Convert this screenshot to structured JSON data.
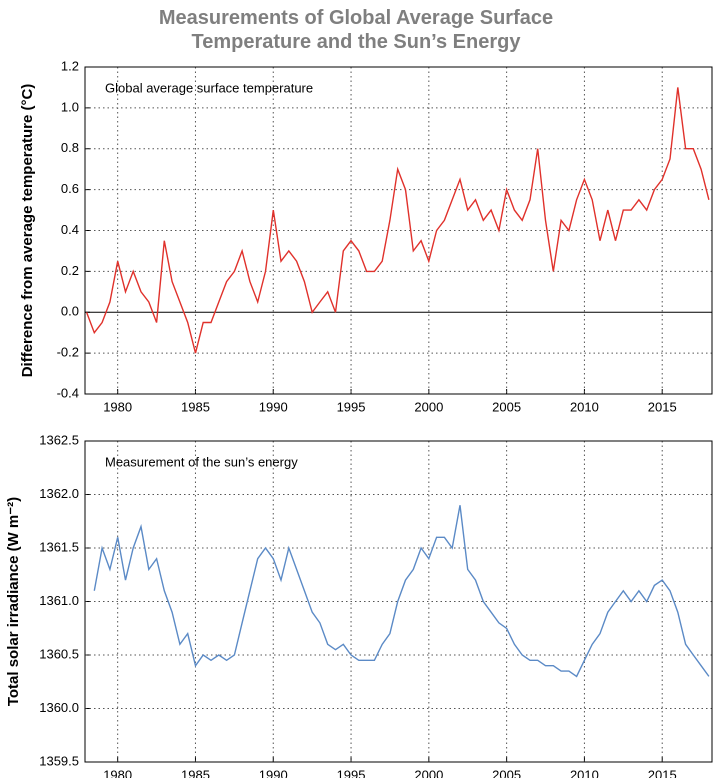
{
  "header": {
    "title": "Measurements of Global Average Surface Temperature and the Sun’s Energy"
  },
  "chart_data": [
    {
      "type": "line",
      "title": "Global average surface temperature",
      "ylabel": "Difference from average temperature (°C)",
      "x": [
        1978,
        1978.5,
        1979,
        1979.5,
        1980,
        1980.5,
        1981,
        1981.5,
        1982,
        1982.5,
        1983,
        1983.5,
        1984,
        1984.5,
        1985,
        1985.5,
        1986,
        1986.5,
        1987,
        1987.5,
        1988,
        1988.5,
        1989,
        1989.5,
        1990,
        1990.5,
        1991,
        1991.5,
        1992,
        1992.5,
        1993,
        1993.5,
        1994,
        1994.5,
        1995,
        1995.5,
        1996,
        1996.5,
        1997,
        1997.5,
        1998,
        1998.5,
        1999,
        1999.5,
        2000,
        2000.5,
        2001,
        2001.5,
        2002,
        2002.5,
        2003,
        2003.5,
        2004,
        2004.5,
        2005,
        2005.5,
        2006,
        2006.5,
        2007,
        2007.5,
        2008,
        2008.5,
        2009,
        2009.5,
        2010,
        2010.5,
        2011,
        2011.5,
        2012,
        2012.5,
        2013,
        2013.5,
        2014,
        2014.5,
        2015,
        2015.5,
        2016,
        2016.5,
        2017,
        2017.5,
        2018
      ],
      "series": [
        {
          "color": "#e0312b",
          "values": [
            0,
            -0.1,
            -0.05,
            0.05,
            0.25,
            0.1,
            0.2,
            0.1,
            0.05,
            -0.05,
            0.35,
            0.15,
            0.05,
            -0.05,
            -0.2,
            -0.05,
            -0.05,
            0.05,
            0.15,
            0.2,
            0.3,
            0.15,
            0.05,
            0.2,
            0.5,
            0.25,
            0.3,
            0.25,
            0.15,
            0,
            0.05,
            0.1,
            0,
            0.3,
            0.35,
            0.3,
            0.2,
            0.2,
            0.25,
            0.45,
            0.7,
            0.6,
            0.3,
            0.35,
            0.25,
            0.4,
            0.45,
            0.55,
            0.65,
            0.5,
            0.55,
            0.45,
            0.5,
            0.4,
            0.6,
            0.5,
            0.45,
            0.55,
            0.8,
            0.45,
            0.2,
            0.45,
            0.4,
            0.55,
            0.65,
            0.55,
            0.35,
            0.5,
            0.35,
            0.5,
            0.5,
            0.55,
            0.5,
            0.6,
            0.65,
            0.75,
            1.1,
            0.8,
            0.8,
            0.7,
            0.55
          ]
        }
      ],
      "xlim": [
        1977.9,
        2018.2
      ],
      "xticks": [
        1980,
        1985,
        1990,
        1995,
        2000,
        2005,
        2010,
        2015
      ],
      "ylim": [
        -0.4,
        1.2
      ],
      "yticks": [
        -0.4,
        -0.2,
        {
          "value": 0,
          "label": "0.0"
        },
        0.2,
        0.4,
        0.6,
        0.8,
        {
          "value": 1,
          "label": "1.0"
        },
        1.2
      ],
      "grid": true
    },
    {
      "type": "line",
      "title": "Measurement of the sun’s energy",
      "ylabel": "Total solar irradiance (W m⁻²)",
      "x": [
        1978.5,
        1979,
        1979.5,
        1980,
        1980.5,
        1981,
        1981.5,
        1982,
        1982.5,
        1983,
        1983.5,
        1984,
        1984.5,
        1985,
        1985.5,
        1986,
        1986.5,
        1987,
        1987.5,
        1988,
        1988.5,
        1989,
        1989.5,
        1990,
        1990.5,
        1991,
        1991.5,
        1992,
        1992.5,
        1993,
        1993.5,
        1994,
        1994.5,
        1995,
        1995.5,
        1996,
        1996.5,
        1997,
        1997.5,
        1998,
        1998.5,
        1999,
        1999.5,
        2000,
        2000.5,
        2001,
        2001.5,
        2002,
        2002.5,
        2003,
        2003.5,
        2004,
        2004.5,
        2005,
        2005.5,
        2006,
        2006.5,
        2007,
        2007.5,
        2008,
        2008.5,
        2009,
        2009.5,
        2010,
        2010.5,
        2011,
        2011.5,
        2012,
        2012.5,
        2013,
        2013.5,
        2014,
        2014.5,
        2015,
        2015.5,
        2016,
        2016.5,
        2017,
        2017.5,
        2018
      ],
      "series": [
        {
          "color": "#5b8ac6",
          "values": [
            1361.1,
            1361.5,
            1361.3,
            1361.6,
            1361.2,
            1361.5,
            1361.7,
            1361.3,
            1361.4,
            1361.1,
            1360.9,
            1360.6,
            1360.7,
            1360.4,
            1360.5,
            1360.45,
            1360.5,
            1360.45,
            1360.5,
            1360.8,
            1361.1,
            1361.4,
            1361.5,
            1361.4,
            1361.2,
            1361.5,
            1361.3,
            1361.1,
            1360.9,
            1360.8,
            1360.6,
            1360.55,
            1360.6,
            1360.5,
            1360.45,
            1360.45,
            1360.45,
            1360.6,
            1360.7,
            1361,
            1361.2,
            1361.3,
            1361.5,
            1361.4,
            1361.6,
            1361.6,
            1361.5,
            1361.9,
            1361.3,
            1361.2,
            1361,
            1360.9,
            1360.8,
            1360.75,
            1360.6,
            1360.5,
            1360.45,
            1360.45,
            1360.4,
            1360.4,
            1360.35,
            1360.35,
            1360.3,
            1360.45,
            1360.6,
            1360.7,
            1360.9,
            1361,
            1361.1,
            1361,
            1361.1,
            1361,
            1361.15,
            1361.2,
            1361.1,
            1360.9,
            1360.6,
            1360.5,
            1360.4,
            1360.3
          ]
        }
      ],
      "xlim": [
        1977.9,
        2018.2
      ],
      "xticks": [
        1980,
        1985,
        1990,
        1995,
        2000,
        2005,
        2010,
        2015
      ],
      "ylim": [
        1359.5,
        1362.5
      ],
      "yticks": [
        1359.5,
        {
          "value": 1360,
          "label": "1360.0"
        },
        1360.5,
        {
          "value": 1361,
          "label": "1361.0"
        },
        1361.5,
        {
          "value": 1362,
          "label": "1362.0"
        },
        1362.5
      ],
      "grid": true
    }
  ]
}
